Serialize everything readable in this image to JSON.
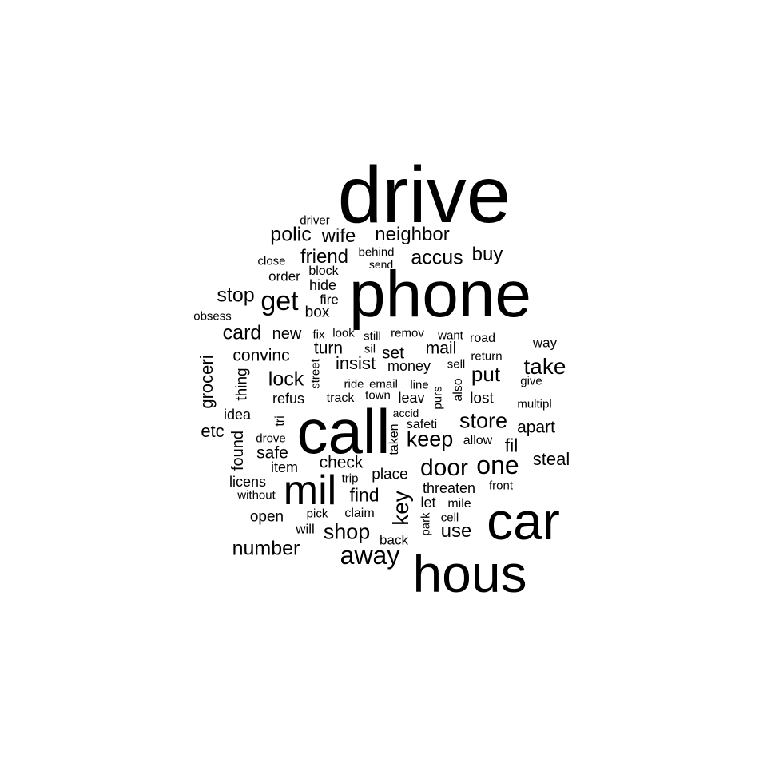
{
  "text_color": "#000000",
  "background_color": "#ffffff",
  "words": [
    {
      "text": "drive",
      "size": 100
    },
    {
      "text": "phone",
      "size": 82
    },
    {
      "text": "call",
      "size": 78
    },
    {
      "text": "car",
      "size": 66
    },
    {
      "text": "hous",
      "size": 66
    },
    {
      "text": "mil",
      "size": 52
    },
    {
      "text": "away",
      "size": 32
    },
    {
      "text": "get",
      "size": 34
    },
    {
      "text": "door",
      "size": 30
    },
    {
      "text": "one",
      "size": 32
    },
    {
      "text": "take",
      "size": 28
    },
    {
      "text": "key",
      "size": 28,
      "vertical": true
    },
    {
      "text": "keep",
      "size": 27
    },
    {
      "text": "store",
      "size": 27
    },
    {
      "text": "shop",
      "size": 27
    },
    {
      "text": "accus",
      "size": 25
    },
    {
      "text": "neighbor",
      "size": 24
    },
    {
      "text": "polic",
      "size": 25
    },
    {
      "text": "wife",
      "size": 24
    },
    {
      "text": "friend",
      "size": 24
    },
    {
      "text": "buy",
      "size": 24
    },
    {
      "text": "stop",
      "size": 25
    },
    {
      "text": "card",
      "size": 25
    },
    {
      "text": "lock",
      "size": 25
    },
    {
      "text": "put",
      "size": 26
    },
    {
      "text": "number",
      "size": 25
    },
    {
      "text": "find",
      "size": 23
    },
    {
      "text": "use",
      "size": 24
    },
    {
      "text": "fil",
      "size": 23
    },
    {
      "text": "steal",
      "size": 22
    },
    {
      "text": "insist",
      "size": 22
    },
    {
      "text": "convinc",
      "size": 21
    },
    {
      "text": "turn",
      "size": 21
    },
    {
      "text": "set",
      "size": 21
    },
    {
      "text": "mail",
      "size": 21
    },
    {
      "text": "check",
      "size": 21
    },
    {
      "text": "safe",
      "size": 21
    },
    {
      "text": "etc",
      "size": 22
    },
    {
      "text": "apart",
      "size": 21
    },
    {
      "text": "new",
      "size": 20
    },
    {
      "text": "groceri",
      "size": 22,
      "vertical": true
    },
    {
      "text": "thing",
      "size": 19,
      "vertical": true
    },
    {
      "text": "found",
      "size": 20,
      "vertical": true
    },
    {
      "text": "place",
      "size": 19
    },
    {
      "text": "licens",
      "size": 18
    },
    {
      "text": "idea",
      "size": 18
    },
    {
      "text": "refus",
      "size": 18
    },
    {
      "text": "item",
      "size": 18
    },
    {
      "text": "lost",
      "size": 19
    },
    {
      "text": "money",
      "size": 18
    },
    {
      "text": "threaten",
      "size": 18
    },
    {
      "text": "let",
      "size": 18
    },
    {
      "text": "open",
      "size": 19
    },
    {
      "text": "hide",
      "size": 18
    },
    {
      "text": "box",
      "size": 19
    },
    {
      "text": "fire",
      "size": 17
    },
    {
      "text": "leav",
      "size": 18
    },
    {
      "text": "way",
      "size": 17
    },
    {
      "text": "order",
      "size": 17
    },
    {
      "text": "will",
      "size": 17
    },
    {
      "text": "back",
      "size": 17
    },
    {
      "text": "block",
      "size": 16
    },
    {
      "text": "track",
      "size": 16
    },
    {
      "text": "claim",
      "size": 16
    },
    {
      "text": "also",
      "size": 16,
      "vertical": true
    },
    {
      "text": "mile",
      "size": 16
    },
    {
      "text": "road",
      "size": 16
    },
    {
      "text": "allow",
      "size": 16
    },
    {
      "text": "look",
      "size": 15
    },
    {
      "text": "still",
      "size": 15
    },
    {
      "text": "remov",
      "size": 15
    },
    {
      "text": "fix",
      "size": 15
    },
    {
      "text": "close",
      "size": 15
    },
    {
      "text": "driver",
      "size": 15
    },
    {
      "text": "behind",
      "size": 15
    },
    {
      "text": "send",
      "size": 14
    },
    {
      "text": "obsess",
      "size": 15
    },
    {
      "text": "want",
      "size": 15
    },
    {
      "text": "return",
      "size": 15
    },
    {
      "text": "sil",
      "size": 15
    },
    {
      "text": "sell",
      "size": 15
    },
    {
      "text": "give",
      "size": 15
    },
    {
      "text": "multipl",
      "size": 15
    },
    {
      "text": "street",
      "size": 15,
      "vertical": true
    },
    {
      "text": "tri",
      "size": 16,
      "vertical": true
    },
    {
      "text": "drove",
      "size": 15
    },
    {
      "text": "safeti",
      "size": 16
    },
    {
      "text": "ride",
      "size": 15
    },
    {
      "text": "email",
      "size": 15
    },
    {
      "text": "line",
      "size": 15
    },
    {
      "text": "town",
      "size": 15
    },
    {
      "text": "purs",
      "size": 15,
      "vertical": true
    },
    {
      "text": "accid",
      "size": 14
    },
    {
      "text": "taken",
      "size": 16,
      "vertical": true
    },
    {
      "text": "trip",
      "size": 15
    },
    {
      "text": "front",
      "size": 15
    },
    {
      "text": "without",
      "size": 15
    },
    {
      "text": "pick",
      "size": 15
    },
    {
      "text": "park",
      "size": 15,
      "vertical": true
    },
    {
      "text": "cell",
      "size": 15
    }
  ]
}
